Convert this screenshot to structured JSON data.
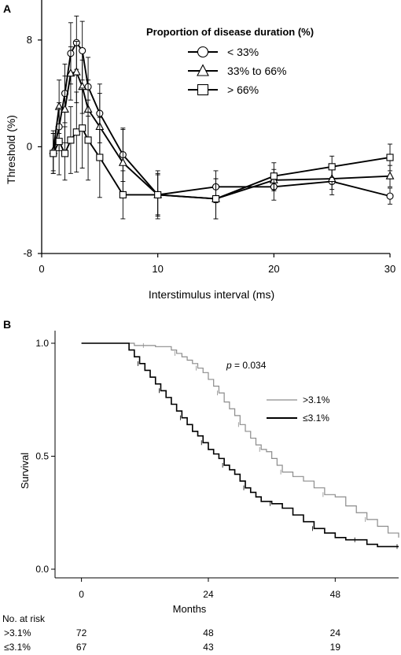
{
  "chart_data": [
    {
      "panel_label": "A",
      "type": "line",
      "xlabel": "Interstimulus  interval (ms)",
      "ylabel": "Threshold  (%)",
      "xlim": [
        0,
        30
      ],
      "ylim": [
        -8,
        11
      ],
      "xticks": [
        "0",
        "10",
        "20",
        "30"
      ],
      "yticks": [
        "-8",
        "0",
        "8"
      ],
      "legend_title": "Proportion of disease duration (%)",
      "legend_position": "top-right",
      "error_bars": true,
      "series": [
        {
          "name": "< 33%",
          "marker": "circle",
          "x": [
            1,
            1.5,
            2,
            2.5,
            3,
            3.5,
            4,
            5,
            7,
            10,
            15,
            20,
            25,
            30
          ],
          "y": [
            -0.5,
            1.5,
            4,
            7,
            7.8,
            7.2,
            4.5,
            2.5,
            -0.6,
            -3.6,
            -3.0,
            -3.0,
            -2.6,
            -3.7
          ],
          "err": [
            1.5,
            1.8,
            2.2,
            2.3,
            2.0,
            2.2,
            2.2,
            2.2,
            2.0,
            1.6,
            1.2,
            1.0,
            1.0,
            0.6
          ]
        },
        {
          "name": "33% to 66%",
          "marker": "triangle",
          "x": [
            1,
            1.5,
            2,
            2.5,
            3,
            3.5,
            4,
            5,
            7,
            10,
            15,
            20,
            25,
            30
          ],
          "y": [
            -0.3,
            3,
            2.8,
            5.5,
            5.6,
            4.5,
            2.8,
            1.5,
            -1.2,
            -3.6,
            -3.9,
            -2.5,
            -2.4,
            -2.2
          ],
          "err": [
            1.5,
            2.0,
            2.5,
            2.0,
            2.3,
            2.0,
            2.2,
            2.5,
            2.5,
            1.8,
            1.5,
            0.8,
            0.8,
            0.8
          ]
        },
        {
          "name": "> 66%",
          "marker": "square",
          "x": [
            1,
            1.5,
            2,
            2.5,
            3,
            3.5,
            4,
            5,
            7,
            10,
            15,
            20,
            25,
            30
          ],
          "y": [
            -0.5,
            0.4,
            -0.5,
            0.5,
            1.1,
            1.4,
            0.5,
            -0.8,
            -3.6,
            -3.6,
            -3.9,
            -2.2,
            -1.5,
            -0.8
          ],
          "err": [
            1.5,
            2.5,
            2.0,
            2.5,
            3.0,
            3.0,
            3.0,
            3.0,
            1.8,
            1.5,
            1.5,
            1.0,
            0.8,
            1.0
          ]
        }
      ]
    },
    {
      "panel_label": "B",
      "type": "line",
      "subtype": "kaplan-meier",
      "xlabel": "Months",
      "ylabel": "Survival",
      "xlim": [
        -5,
        60
      ],
      "ylim": [
        0.0,
        1.0
      ],
      "xticks": [
        "0",
        "24",
        "48"
      ],
      "yticks": [
        "0.0",
        "0.5",
        "1.0"
      ],
      "annotation": "p = 0.034",
      "annotation_prefix": "p",
      "annotation_value": " = 0.034",
      "legend_position": "right",
      "series": [
        {
          "name": ">3.1%",
          "color": "#8c8c8c",
          "x": [
            0,
            8,
            10,
            11,
            12,
            14,
            15,
            17,
            18,
            19,
            20,
            21,
            22,
            23,
            24,
            25,
            26,
            27,
            28,
            29,
            30,
            31,
            32,
            33,
            34,
            35,
            36,
            37,
            38,
            40,
            42,
            44,
            46,
            48,
            50,
            52,
            54,
            56,
            58,
            60
          ],
          "y": [
            1.0,
            1.0,
            0.99,
            0.99,
            0.99,
            0.985,
            0.985,
            0.97,
            0.955,
            0.94,
            0.925,
            0.91,
            0.89,
            0.87,
            0.84,
            0.81,
            0.78,
            0.74,
            0.71,
            0.68,
            0.64,
            0.61,
            0.58,
            0.55,
            0.53,
            0.52,
            0.49,
            0.46,
            0.43,
            0.41,
            0.39,
            0.36,
            0.33,
            0.32,
            0.28,
            0.25,
            0.22,
            0.19,
            0.16,
            0.14
          ]
        },
        {
          "name": "≤3.1%",
          "color": "#000000",
          "x": [
            0,
            8,
            9,
            10,
            11,
            12,
            13,
            14,
            15,
            16,
            17,
            18,
            19,
            20,
            21,
            22,
            23,
            24,
            25,
            26,
            27,
            28,
            29,
            30,
            31,
            32,
            33,
            34,
            36,
            38,
            40,
            42,
            44,
            46,
            48,
            50,
            52,
            54,
            56,
            58,
            60
          ],
          "y": [
            1.0,
            1.0,
            0.97,
            0.94,
            0.91,
            0.88,
            0.85,
            0.82,
            0.79,
            0.76,
            0.73,
            0.7,
            0.67,
            0.64,
            0.61,
            0.59,
            0.56,
            0.53,
            0.51,
            0.49,
            0.46,
            0.44,
            0.42,
            0.39,
            0.36,
            0.34,
            0.32,
            0.3,
            0.29,
            0.27,
            0.24,
            0.21,
            0.18,
            0.16,
            0.14,
            0.13,
            0.13,
            0.11,
            0.1,
            0.1,
            0.1
          ]
        }
      ],
      "risk_table": {
        "title": "No. at risk",
        "times": [
          "0",
          "24",
          "48"
        ],
        "rows": [
          {
            "label": ">3.1%",
            "values": [
              "72",
              "48",
              "24"
            ]
          },
          {
            "label": "≤3.1%",
            "values": [
              "67",
              "43",
              "19"
            ]
          }
        ]
      }
    }
  ]
}
